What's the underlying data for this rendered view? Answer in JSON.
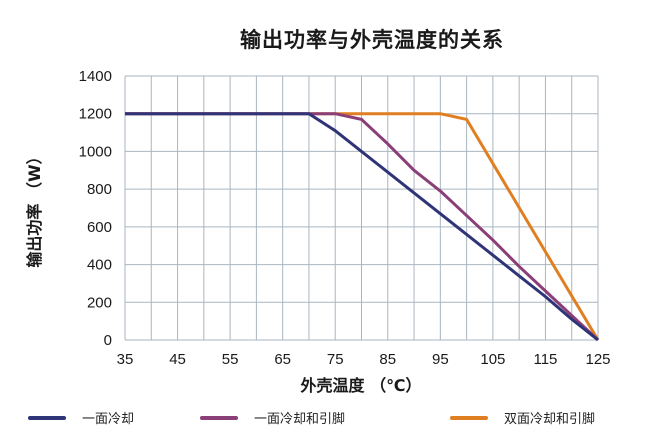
{
  "chart_data": {
    "type": "line",
    "title": "输出功率与外壳温度的关系",
    "xlabel": "外壳温度 （℃）",
    "ylabel": "输出功率 （W）",
    "xlim": [
      35,
      125
    ],
    "ylim": [
      0,
      1400
    ],
    "x_ticks": [
      35,
      45,
      55,
      65,
      75,
      85,
      95,
      105,
      115,
      125
    ],
    "y_ticks": [
      0,
      200,
      400,
      600,
      800,
      1000,
      1200,
      1400
    ],
    "grid": true,
    "grid_x_step": 5,
    "grid_y_step": 200,
    "legend_position": "bottom",
    "series": [
      {
        "name": "一面冷却",
        "color": "#2e3477",
        "x": [
          35,
          70,
          75,
          80,
          85,
          90,
          95,
          100,
          105,
          110,
          115,
          120,
          125
        ],
        "y": [
          1200,
          1200,
          1110,
          1000,
          890,
          780,
          670,
          560,
          450,
          340,
          230,
          110,
          0
        ]
      },
      {
        "name": "一面冷却和引脚",
        "color": "#8b3f78",
        "x": [
          35,
          75,
          80,
          85,
          90,
          95,
          100,
          105,
          110,
          115,
          120,
          125
        ],
        "y": [
          1200,
          1200,
          1170,
          1040,
          900,
          790,
          660,
          530,
          390,
          260,
          130,
          0
        ]
      },
      {
        "name": "双面冷却和引脚",
        "color": "#e07f22",
        "x": [
          35,
          95,
          100,
          125
        ],
        "y": [
          1200,
          1200,
          1170,
          0
        ]
      }
    ]
  },
  "legend": [
    {
      "label": "一面冷却",
      "color": "#2e3477"
    },
    {
      "label": "一面冷却和引脚",
      "color": "#8b3f78"
    },
    {
      "label": "双面冷却和引脚",
      "color": "#e07f22"
    }
  ]
}
